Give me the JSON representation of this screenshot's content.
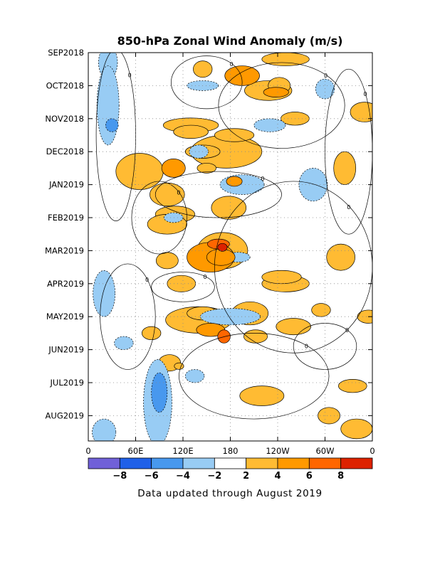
{
  "chart_data": {
    "type": "heatmap",
    "title": "850-hPa Zonal Wind Anomaly (m/s)",
    "xlabel": "",
    "ylabel": "",
    "x_tick_labels": [
      "0",
      "60E",
      "120E",
      "180",
      "120W",
      "60W",
      "0"
    ],
    "y_tick_labels": [
      "SEP2018",
      "OCT2018",
      "NOV2018",
      "DEC2018",
      "JAN2019",
      "FEB2019",
      "MAR2019",
      "APR2019",
      "MAY2019",
      "JUN2019",
      "JUL2019",
      "AUG2019"
    ],
    "colorbar": {
      "labels": [
        "-8",
        "-6",
        "-4",
        "-2",
        "2",
        "4",
        "6",
        "8"
      ],
      "colors": [
        "#7060d8",
        "#2060e8",
        "#4898ee",
        "#98ccf4",
        "#ffffff",
        "#ffbb33",
        "#ff9900",
        "#ff6600",
        "#dd2200"
      ]
    },
    "contour_label": "0",
    "footer": "Data updated through August 2019",
    "grid": "dotted",
    "anomaly_regions": [
      {
        "lon": 185,
        "time": 3.9,
        "rx": 10,
        "ry": 0.15,
        "level": 2
      },
      {
        "lon": 195,
        "time": 0.7,
        "rx": 22,
        "ry": 0.3,
        "level": 2
      },
      {
        "lon": 228,
        "time": 1.15,
        "rx": 30,
        "ry": 0.3,
        "level": 1
      },
      {
        "lon": 238,
        "time": 1.2,
        "rx": 16,
        "ry": 0.15,
        "level": 2
      },
      {
        "lon": 262,
        "time": 2.0,
        "rx": 18,
        "ry": 0.2,
        "level": 1
      },
      {
        "lon": 130,
        "time": 2.2,
        "rx": 35,
        "ry": 0.22,
        "level": 1
      },
      {
        "lon": 110,
        "time": 4.9,
        "rx": 25,
        "ry": 0.25,
        "level": 1
      },
      {
        "lon": 175,
        "time": 3.0,
        "rx": 45,
        "ry": 0.5,
        "level": 1
      },
      {
        "lon": 185,
        "time": 2.5,
        "rx": 25,
        "ry": 0.2,
        "level": 1
      },
      {
        "lon": 150,
        "time": 3.5,
        "rx": 12,
        "ry": 0.15,
        "level": 1
      },
      {
        "lon": 100,
        "time": 5.2,
        "rx": 25,
        "ry": 0.3,
        "level": 1
      },
      {
        "lon": 108,
        "time": 3.5,
        "rx": 15,
        "ry": 0.28,
        "level": 2
      },
      {
        "lon": 65,
        "time": 3.6,
        "rx": 30,
        "ry": 0.55,
        "level": 1
      },
      {
        "lon": 118,
        "time": 7.0,
        "rx": 18,
        "ry": 0.25,
        "level": 1
      },
      {
        "lon": 155,
        "time": 6.2,
        "rx": 30,
        "ry": 0.45,
        "level": 2
      },
      {
        "lon": 145,
        "time": 3.0,
        "rx": 22,
        "ry": 0.2,
        "level": 1
      },
      {
        "lon": 205,
        "time": 7.9,
        "rx": 23,
        "ry": 0.35,
        "level": 1
      },
      {
        "lon": 350,
        "time": 1.8,
        "rx": 18,
        "ry": 0.3,
        "level": 1
      },
      {
        "lon": 100,
        "time": 4.3,
        "rx": 22,
        "ry": 0.35,
        "level": 1
      },
      {
        "lon": 212,
        "time": 8.6,
        "rx": 15,
        "ry": 0.2,
        "level": 1
      },
      {
        "lon": 170,
        "time": 6.0,
        "rx": 32,
        "ry": 0.55,
        "level": 1
      },
      {
        "lon": 100,
        "time": 6.3,
        "rx": 14,
        "ry": 0.25,
        "level": 1
      },
      {
        "lon": 260,
        "time": 8.3,
        "rx": 22,
        "ry": 0.25,
        "level": 1
      },
      {
        "lon": 335,
        "time": 10.1,
        "rx": 18,
        "ry": 0.2,
        "level": 1
      },
      {
        "lon": 80,
        "time": 8.5,
        "rx": 12,
        "ry": 0.2,
        "level": 1
      },
      {
        "lon": 103,
        "time": 9.4,
        "rx": 14,
        "ry": 0.25,
        "level": 1
      },
      {
        "lon": 140,
        "time": 8.1,
        "rx": 42,
        "ry": 0.4,
        "level": 1
      },
      {
        "lon": 250,
        "time": 7.0,
        "rx": 30,
        "ry": 0.25,
        "level": 1
      },
      {
        "lon": 340,
        "time": 11.4,
        "rx": 20,
        "ry": 0.3,
        "level": 1
      },
      {
        "lon": 320,
        "time": 6.2,
        "rx": 18,
        "ry": 0.4,
        "level": 1
      },
      {
        "lon": 155,
        "time": 8.4,
        "rx": 18,
        "ry": 0.2,
        "level": 2
      },
      {
        "lon": 295,
        "time": 7.8,
        "rx": 12,
        "ry": 0.2,
        "level": 1
      },
      {
        "lon": 168,
        "time": 6.2,
        "rx": 18,
        "ry": 0.25,
        "level": 2
      },
      {
        "lon": 245,
        "time": 6.8,
        "rx": 25,
        "ry": 0.2,
        "level": 1
      },
      {
        "lon": 178,
        "time": 4.7,
        "rx": 22,
        "ry": 0.35,
        "level": 1
      },
      {
        "lon": 130,
        "time": 2.4,
        "rx": 22,
        "ry": 0.2,
        "level": 1
      },
      {
        "lon": 220,
        "time": 10.4,
        "rx": 28,
        "ry": 0.3,
        "level": 1
      },
      {
        "lon": 325,
        "time": 3.5,
        "rx": 14,
        "ry": 0.5,
        "level": 1
      },
      {
        "lon": 242,
        "time": 1.0,
        "rx": 14,
        "ry": 0.25,
        "level": 1
      },
      {
        "lon": 145,
        "time": 0.5,
        "rx": 12,
        "ry": 0.25,
        "level": 1
      },
      {
        "lon": 355,
        "time": 8.0,
        "rx": 14,
        "ry": 0.2,
        "level": 1
      },
      {
        "lon": 305,
        "time": 11.0,
        "rx": 14,
        "ry": 0.25,
        "level": 1
      },
      {
        "lon": 250,
        "time": 0.2,
        "rx": 30,
        "ry": 0.2,
        "level": 1
      },
      {
        "lon": 145,
        "time": 7.9,
        "rx": 20,
        "ry": 0.2,
        "level": 1
      },
      {
        "lon": 165,
        "time": 5.8,
        "rx": 14,
        "ry": 0.15,
        "level": 3
      },
      {
        "lon": 172,
        "time": 8.6,
        "rx": 8,
        "ry": 0.2,
        "level": 3
      },
      {
        "lon": 115,
        "time": 9.5,
        "rx": 6,
        "ry": 0.1,
        "level": 1
      },
      {
        "lon": 170,
        "time": 5.9,
        "rx": 6,
        "ry": 0.12,
        "level": 4
      },
      {
        "lon": 25,
        "time": 0.3,
        "rx": 12,
        "ry": 0.5,
        "level": -1
      },
      {
        "lon": 25,
        "time": 1.6,
        "rx": 14,
        "ry": 1.2,
        "level": -1
      },
      {
        "lon": 30,
        "time": 2.2,
        "rx": 8,
        "ry": 0.2,
        "level": -2
      },
      {
        "lon": 88,
        "time": 10.6,
        "rx": 18,
        "ry": 1.3,
        "level": -1
      },
      {
        "lon": 90,
        "time": 10.3,
        "rx": 10,
        "ry": 0.6,
        "level": -2
      },
      {
        "lon": 20,
        "time": 11.5,
        "rx": 15,
        "ry": 0.4,
        "level": -1
      },
      {
        "lon": 20,
        "time": 7.3,
        "rx": 14,
        "ry": 0.7,
        "level": -1
      },
      {
        "lon": 195,
        "time": 4.0,
        "rx": 28,
        "ry": 0.3,
        "level": -1
      },
      {
        "lon": 285,
        "time": 4.0,
        "rx": 18,
        "ry": 0.5,
        "level": -1
      },
      {
        "lon": 180,
        "time": 8.0,
        "rx": 38,
        "ry": 0.25,
        "level": -1
      },
      {
        "lon": 145,
        "time": 1.0,
        "rx": 20,
        "ry": 0.15,
        "level": -1
      },
      {
        "lon": 140,
        "time": 3.0,
        "rx": 12,
        "ry": 0.2,
        "level": -1
      },
      {
        "lon": 230,
        "time": 2.2,
        "rx": 20,
        "ry": 0.2,
        "level": -1
      },
      {
        "lon": 190,
        "time": 6.2,
        "rx": 15,
        "ry": 0.15,
        "level": -1
      },
      {
        "lon": 135,
        "time": 9.8,
        "rx": 12,
        "ry": 0.2,
        "level": -1
      },
      {
        "lon": 45,
        "time": 8.8,
        "rx": 12,
        "ry": 0.2,
        "level": -1
      },
      {
        "lon": 108,
        "time": 5.0,
        "rx": 12,
        "ry": 0.15,
        "level": -1
      },
      {
        "lon": 300,
        "time": 1.1,
        "rx": 12,
        "ry": 0.3,
        "level": -1
      }
    ],
    "zero_contours": [
      {
        "lon": 35,
        "time": 2.5,
        "rx": 25,
        "ry": 2.6
      },
      {
        "lon": 260,
        "time": 6.5,
        "rx": 100,
        "ry": 2.6
      },
      {
        "lon": 210,
        "time": 9.8,
        "rx": 95,
        "ry": 1.3
      },
      {
        "lon": 165,
        "time": 4.3,
        "rx": 80,
        "ry": 0.7
      },
      {
        "lon": 50,
        "time": 8.0,
        "rx": 35,
        "ry": 1.6
      },
      {
        "lon": 245,
        "time": 1.6,
        "rx": 80,
        "ry": 1.3
      },
      {
        "lon": 330,
        "time": 3.0,
        "rx": 30,
        "ry": 2.5
      },
      {
        "lon": 150,
        "time": 0.9,
        "rx": 45,
        "ry": 0.8
      },
      {
        "lon": 120,
        "time": 7.1,
        "rx": 40,
        "ry": 0.45
      },
      {
        "lon": 300,
        "time": 8.9,
        "rx": 40,
        "ry": 0.7
      },
      {
        "lon": 90,
        "time": 5.0,
        "rx": 35,
        "ry": 1.1
      }
    ]
  }
}
